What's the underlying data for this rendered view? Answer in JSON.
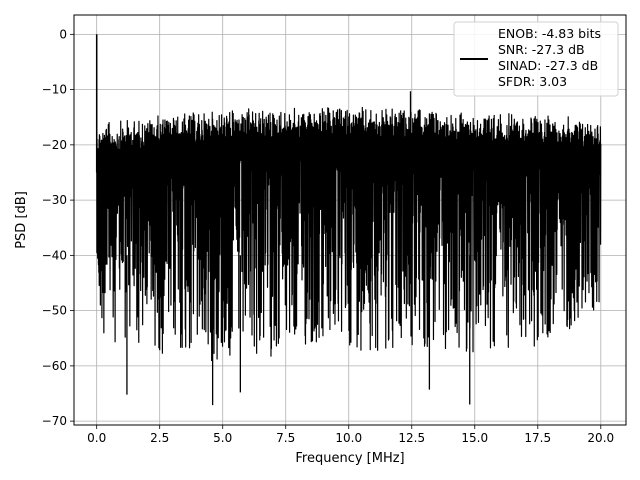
{
  "chart_data": {
    "type": "line",
    "title": "",
    "xlabel": "Frequency [MHz]",
    "ylabel": "PSD [dB]",
    "xlim": [
      -0.9,
      21.0
    ],
    "ylim": [
      -70.7,
      3.5
    ],
    "xticks": [
      0.0,
      2.5,
      5.0,
      7.5,
      10.0,
      12.5,
      15.0,
      17.5,
      20.0
    ],
    "xtick_labels": [
      "0.0",
      "2.5",
      "5.0",
      "7.5",
      "10.0",
      "12.5",
      "15.0",
      "17.5",
      "20.0"
    ],
    "yticks": [
      0,
      -10,
      -20,
      -30,
      -40,
      -50,
      -60,
      -70
    ],
    "ytick_labels": [
      "0",
      "−10",
      "−20",
      "−30",
      "−40",
      "−50",
      "−60",
      "−70"
    ],
    "grid": true,
    "legend": {
      "location": "top-right",
      "entries": [
        "ENOB: -4.83 bits",
        "SNR: -27.3 dB",
        "SINAD: -27.3 dB",
        "SFDR: 3.03"
      ]
    },
    "series": [
      {
        "color": "#000000",
        "x_range": [
          0.0,
          20.0
        ],
        "peak": {
          "x": 0.0,
          "y": 0.0
        },
        "spikes": [
          {
            "x": 12.45,
            "y": -10.3
          },
          {
            "x": 4.6,
            "y": -67.1
          },
          {
            "x": 14.8,
            "y": -67.0
          },
          {
            "x": 1.2,
            "y": -65.2
          },
          {
            "x": 5.7,
            "y": -64.8
          },
          {
            "x": 13.2,
            "y": -64.3
          }
        ],
        "envelope": {
          "x": [
            0.0,
            2.5,
            5.0,
            7.5,
            10.0,
            12.5,
            15.0,
            17.5,
            20.0
          ],
          "upper": [
            -16.0,
            -14.5,
            -13.5,
            -13.3,
            -13.0,
            -13.5,
            -13.8,
            -14.5,
            -15.0
          ],
          "lower": [
            -55.0,
            -58.0,
            -60.0,
            -58.0,
            -57.0,
            -58.0,
            -58.0,
            -57.0,
            -50.0
          ]
        }
      }
    ]
  }
}
